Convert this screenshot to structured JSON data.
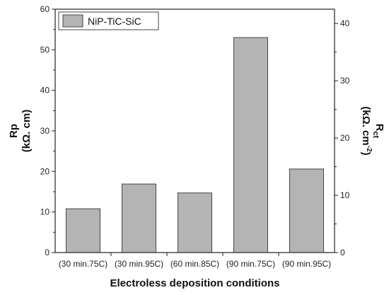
{
  "chart_data": {
    "type": "bar",
    "categories": [
      "(30 min.75C)",
      "(30 min.95C)",
      "(60 min.85C)",
      "(90 min.75C)",
      "(90 min.95C)"
    ],
    "series": [
      {
        "name": "NiP-TiC-SiC",
        "values": [
          10.8,
          16.9,
          14.7,
          53.0,
          20.6
        ]
      }
    ],
    "xlabel": "Electroless deposition conditions",
    "ylabel": {
      "line1": "Rp",
      "line2": "(kΩ. cm)"
    },
    "ylabel_right": {
      "main": "R",
      "sub": "ct",
      "unit": "(kΩ. cm",
      "sup": "-2",
      "close": ")"
    },
    "ylim": [
      0,
      60
    ],
    "yticks": [
      "0",
      "10",
      "20",
      "30",
      "40",
      "50",
      "60"
    ],
    "ylim_right": [
      0,
      42.5
    ],
    "yticks_right": [
      "0",
      "10",
      "20",
      "30",
      "40"
    ],
    "legend_position": "top-left",
    "grid": false,
    "colors": {
      "bar_fill": "#b4b4b4",
      "bar_stroke": "#444444",
      "axis": "#222222"
    }
  }
}
